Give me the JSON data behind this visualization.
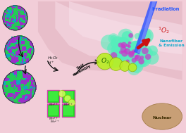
{
  "bg_color": "#f2cdd8",
  "tissue_color": "#e8bfcc",
  "tissue_highlight": "#f8e0e8",
  "nuclear_color": "#c49a6c",
  "nuclear_text": "Nuclear",
  "irradiation_text": "Irradiation",
  "nanofiber_text": "Nanofiber\n& Emission",
  "self_assembly_text": "Self\nassembly",
  "o2_text": "O2",
  "sphere_purple": "#9b2fc9",
  "sphere_green": "#22cc55",
  "sphere_teal": "#11aabb",
  "square_green": "#22dd22",
  "square_border": "#cc44aa",
  "o2_bubble_color": "#bbee22",
  "o2_bubble_edge": "#88aa00",
  "nanofiber_color": "#55eebb",
  "nanofiber_purple": "#cc44ee",
  "arrow_color": "#111111",
  "blue_beam_color": "#2244ff",
  "red_arrow_color": "#cc1111",
  "label_color_irr": "#2255ff",
  "label_color_o2s": "#cc1111",
  "label_color_nano": "#11aacc",
  "label_color_mn": "#222222",
  "label_color_h2o2": "#222222"
}
